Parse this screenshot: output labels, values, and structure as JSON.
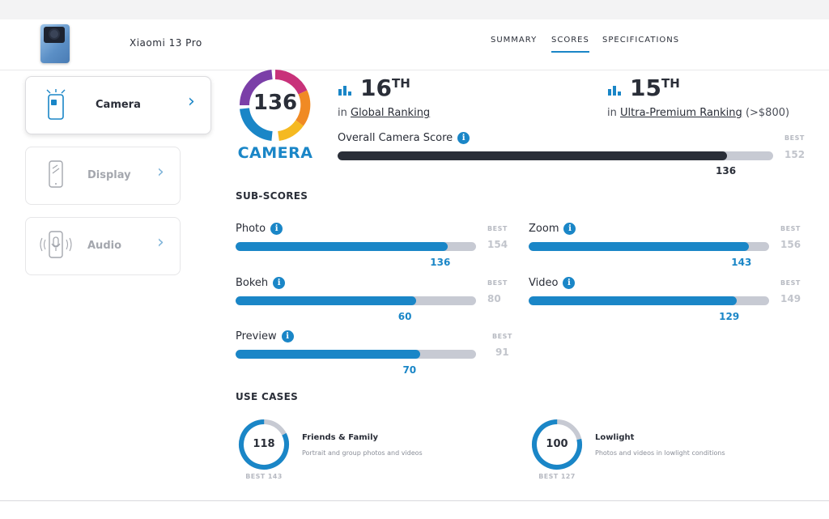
{
  "header": {
    "device_name": "Xiaomi 13 Pro",
    "nav": [
      "SUMMARY",
      "SCORES",
      "SPECIFICATIONS"
    ],
    "active_nav": "SCORES"
  },
  "sidebar": {
    "items": [
      {
        "label": "Camera",
        "active": true
      },
      {
        "label": "Display",
        "active": false
      },
      {
        "label": "Audio",
        "active": false
      }
    ],
    "chevron": "›"
  },
  "badge": {
    "score": "136",
    "label": "CAMERA"
  },
  "rankings": {
    "global": {
      "rank": "16",
      "suffix": "TH",
      "prefix": "in",
      "link": "Global Ranking",
      "extra": ""
    },
    "segment": {
      "rank": "15",
      "suffix": "TH",
      "prefix": "in",
      "link": "Ultra-Premium Ranking",
      "extra": "(>$800)"
    }
  },
  "overall": {
    "label": "Overall Camera Score",
    "score": 136,
    "best": 152,
    "best_label": "BEST",
    "color": "#2a2e38"
  },
  "info_glyph": "i",
  "subscores": {
    "title": "SUB-SCORES",
    "items": [
      {
        "label": "Photo",
        "score": 136,
        "best": 154
      },
      {
        "label": "Zoom",
        "score": 143,
        "best": 156
      },
      {
        "label": "Bokeh",
        "score": 60,
        "best": 80
      },
      {
        "label": "Video",
        "score": 129,
        "best": 149
      },
      {
        "label": "Preview",
        "score": 70,
        "best": 91
      }
    ],
    "best_label": "BEST",
    "color": "#1a86c7"
  },
  "use_cases": {
    "title": "USE CASES",
    "items": [
      {
        "score": "118",
        "title": "Friends & Family",
        "desc": "Portrait and group photos and videos",
        "best": "BEST 143",
        "fraction": 0.825
      },
      {
        "score": "100",
        "title": "Lowlight",
        "desc": "Photos and videos in lowlight conditions",
        "best": "BEST 127",
        "fraction": 0.787
      }
    ]
  },
  "colors": {
    "accent": "#1a86c7",
    "track": "#c7cad3",
    "dark": "#2a2e38",
    "badge_ring": [
      "#7b3fa8",
      "#c8327a",
      "#f08a24",
      "#f5b921",
      "#1a86c7"
    ]
  }
}
